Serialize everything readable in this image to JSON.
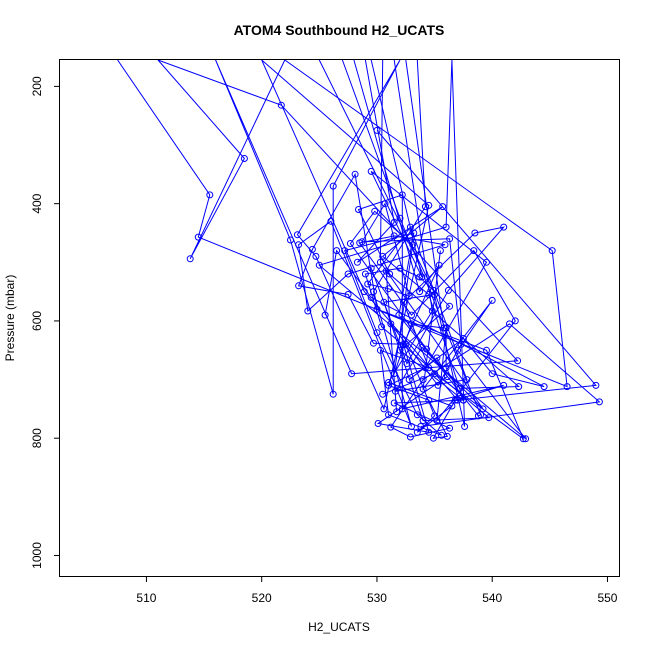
{
  "chart_data": {
    "type": "line",
    "title": "ATOM4 Southbound H2_UCATS",
    "xlabel": "H2_UCATS",
    "ylabel": "Pressure (mbar)",
    "xlim": [
      502.5,
      551
    ],
    "ylim": [
      1035,
      155
    ],
    "y_reversed": true,
    "x_ticks": [
      510,
      520,
      530,
      540,
      550
    ],
    "y_ticks": [
      200,
      400,
      600,
      800,
      1000
    ],
    "grid": false,
    "series_color": "#0000ff",
    "marker": "open-circle",
    "series": [
      {
        "values": [
          {
            "x": 507.5,
            "y": 155
          },
          {
            "x": 515.5,
            "y": 385
          },
          {
            "x": 514.5,
            "y": 457
          },
          {
            "x": 546.5,
            "y": 712
          },
          {
            "x": 545.2,
            "y": 480
          },
          {
            "x": 522,
            "y": 155
          },
          {
            "x": 513.8,
            "y": 494
          },
          {
            "x": 518.5,
            "y": 323
          },
          {
            "x": 511,
            "y": 155
          },
          {
            "x": 521.7,
            "y": 232
          },
          {
            "x": 542.2,
            "y": 668
          },
          {
            "x": 527.8,
            "y": 690
          },
          {
            "x": 516,
            "y": 155
          },
          {
            "x": 522.5,
            "y": 462
          },
          {
            "x": 526.2,
            "y": 725
          },
          {
            "x": 526.2,
            "y": 370
          },
          {
            "x": 532,
            "y": 155
          },
          {
            "x": 523.1,
            "y": 453
          },
          {
            "x": 524.7,
            "y": 490
          },
          {
            "x": 530.6,
            "y": 750
          },
          {
            "x": 534.5,
            "y": 403
          },
          {
            "x": 520,
            "y": 155
          },
          {
            "x": 528.9,
            "y": 550
          },
          {
            "x": 537,
            "y": 735
          },
          {
            "x": 549,
            "y": 710
          },
          {
            "x": 530,
            "y": 275
          }
        ]
      },
      {
        "values": [
          {
            "x": 533.5,
            "y": 155
          },
          {
            "x": 534.2,
            "y": 405
          },
          {
            "x": 529.7,
            "y": 550
          },
          {
            "x": 533.0,
            "y": 780
          },
          {
            "x": 526.0,
            "y": 430
          },
          {
            "x": 523.2,
            "y": 470
          },
          {
            "x": 524.0,
            "y": 583
          },
          {
            "x": 527.5,
            "y": 520
          },
          {
            "x": 535.9,
            "y": 470
          },
          {
            "x": 531.5,
            "y": 455
          },
          {
            "x": 528.5,
            "y": 467
          },
          {
            "x": 533.0,
            "y": 590
          },
          {
            "x": 538.4,
            "y": 480
          },
          {
            "x": 542.0,
            "y": 600
          },
          {
            "x": 535.2,
            "y": 770
          },
          {
            "x": 536.0,
            "y": 612
          },
          {
            "x": 536.0,
            "y": 680
          },
          {
            "x": 537.5,
            "y": 735
          },
          {
            "x": 531.5,
            "y": 740
          },
          {
            "x": 536.3,
            "y": 783
          },
          {
            "x": 532.9,
            "y": 798
          },
          {
            "x": 531.2,
            "y": 781
          },
          {
            "x": 534.0,
            "y": 700
          },
          {
            "x": 541.5,
            "y": 605
          },
          {
            "x": 549.3,
            "y": 738
          },
          {
            "x": 533.8,
            "y": 780
          }
        ]
      },
      {
        "values": [
          {
            "x": 529.5,
            "y": 155
          },
          {
            "x": 533.9,
            "y": 525
          },
          {
            "x": 529.5,
            "y": 345
          },
          {
            "x": 539.5,
            "y": 500
          },
          {
            "x": 534.2,
            "y": 680
          },
          {
            "x": 531.0,
            "y": 710
          },
          {
            "x": 534.5,
            "y": 735
          },
          {
            "x": 536.1,
            "y": 797
          },
          {
            "x": 534.9,
            "y": 800
          },
          {
            "x": 536.8,
            "y": 735
          },
          {
            "x": 541.0,
            "y": 710
          },
          {
            "x": 532.2,
            "y": 750
          },
          {
            "x": 532.2,
            "y": 385
          },
          {
            "x": 528.4,
            "y": 410
          },
          {
            "x": 531.1,
            "y": 520
          }
        ]
      },
      {
        "values": [
          {
            "x": 525,
            "y": 155
          },
          {
            "x": 534.9,
            "y": 548
          },
          {
            "x": 537.6,
            "y": 780
          },
          {
            "x": 536.5,
            "y": 155
          },
          {
            "x": 536.0,
            "y": 440
          },
          {
            "x": 525.0,
            "y": 505
          },
          {
            "x": 542.9,
            "y": 801
          },
          {
            "x": 537.0,
            "y": 650
          },
          {
            "x": 540.0,
            "y": 565
          },
          {
            "x": 534.0,
            "y": 716
          },
          {
            "x": 535.5,
            "y": 480
          }
        ]
      },
      {
        "values": [
          {
            "x": 527.0,
            "y": 155
          },
          {
            "x": 532.0,
            "y": 425
          },
          {
            "x": 539.0,
            "y": 760
          },
          {
            "x": 538.8,
            "y": 762
          },
          {
            "x": 531.9,
            "y": 590
          },
          {
            "x": 533.2,
            "y": 450
          },
          {
            "x": 527.2,
            "y": 480
          },
          {
            "x": 530.0,
            "y": 620
          },
          {
            "x": 533.5,
            "y": 760
          },
          {
            "x": 535.6,
            "y": 795
          },
          {
            "x": 531.0,
            "y": 760
          },
          {
            "x": 530.3,
            "y": 650
          },
          {
            "x": 534.5,
            "y": 680
          },
          {
            "x": 532.3,
            "y": 568
          },
          {
            "x": 538.5,
            "y": 450
          },
          {
            "x": 541.0,
            "y": 440
          },
          {
            "x": 536.2,
            "y": 548
          },
          {
            "x": 532.6,
            "y": 673
          },
          {
            "x": 529.5,
            "y": 510
          }
        ]
      },
      {
        "values": [
          {
            "x": 531.5,
            "y": 155
          },
          {
            "x": 534.8,
            "y": 583
          },
          {
            "x": 531.0,
            "y": 705
          },
          {
            "x": 536.5,
            "y": 745
          },
          {
            "x": 533.5,
            "y": 790
          },
          {
            "x": 535.0,
            "y": 762
          },
          {
            "x": 532.5,
            "y": 640
          },
          {
            "x": 529.7,
            "y": 638
          },
          {
            "x": 527.5,
            "y": 555
          },
          {
            "x": 523.2,
            "y": 540
          },
          {
            "x": 524.4,
            "y": 478
          },
          {
            "x": 528.1,
            "y": 350
          },
          {
            "x": 530.0,
            "y": 580
          },
          {
            "x": 539.5,
            "y": 650
          },
          {
            "x": 542.7,
            "y": 801
          },
          {
            "x": 535.0,
            "y": 690
          },
          {
            "x": 530.5,
            "y": 725
          }
        ]
      },
      {
        "values": [
          {
            "x": 529.0,
            "y": 155
          },
          {
            "x": 531.5,
            "y": 432
          },
          {
            "x": 528.3,
            "y": 500
          },
          {
            "x": 535.7,
            "y": 405
          },
          {
            "x": 530.5,
            "y": 490
          },
          {
            "x": 534.5,
            "y": 555
          },
          {
            "x": 537.5,
            "y": 735
          },
          {
            "x": 532.0,
            "y": 650
          },
          {
            "x": 536.3,
            "y": 575
          },
          {
            "x": 533.7,
            "y": 525
          },
          {
            "x": 532.0,
            "y": 510
          },
          {
            "x": 529.0,
            "y": 520
          },
          {
            "x": 530.4,
            "y": 610
          },
          {
            "x": 539.7,
            "y": 765
          },
          {
            "x": 534.0,
            "y": 770
          },
          {
            "x": 530.6,
            "y": 568
          },
          {
            "x": 535.0,
            "y": 555
          }
        ]
      },
      {
        "values": [
          {
            "x": 530.5,
            "y": 155
          },
          {
            "x": 530.3,
            "y": 500
          },
          {
            "x": 539.2,
            "y": 750
          },
          {
            "x": 533.9,
            "y": 645
          },
          {
            "x": 531.6,
            "y": 720
          },
          {
            "x": 537.8,
            "y": 700
          },
          {
            "x": 532.9,
            "y": 440
          },
          {
            "x": 529.2,
            "y": 537
          },
          {
            "x": 531.0,
            "y": 545
          },
          {
            "x": 532.8,
            "y": 558
          },
          {
            "x": 530.7,
            "y": 400
          },
          {
            "x": 528.7,
            "y": 465
          },
          {
            "x": 536.3,
            "y": 460
          },
          {
            "x": 537.3,
            "y": 640
          },
          {
            "x": 535.3,
            "y": 710
          },
          {
            "x": 531.2,
            "y": 605
          }
        ]
      },
      {
        "values": [
          {
            "x": 528.0,
            "y": 155
          },
          {
            "x": 533.7,
            "y": 550
          },
          {
            "x": 535.4,
            "y": 505
          },
          {
            "x": 532.3,
            "y": 640
          },
          {
            "x": 534.5,
            "y": 790
          },
          {
            "x": 530.1,
            "y": 775
          },
          {
            "x": 536.1,
            "y": 695
          },
          {
            "x": 535.2,
            "y": 663
          },
          {
            "x": 532.8,
            "y": 700
          },
          {
            "x": 537.5,
            "y": 630
          },
          {
            "x": 540.0,
            "y": 690
          },
          {
            "x": 544.5,
            "y": 712
          },
          {
            "x": 529.5,
            "y": 560
          },
          {
            "x": 526.5,
            "y": 480
          },
          {
            "x": 525.5,
            "y": 590
          }
        ]
      },
      {
        "values": [
          {
            "x": 532.5,
            "y": 155
          },
          {
            "x": 535.8,
            "y": 612
          },
          {
            "x": 533.0,
            "y": 605
          },
          {
            "x": 531.5,
            "y": 690
          },
          {
            "x": 533.1,
            "y": 470
          },
          {
            "x": 529.8,
            "y": 413
          },
          {
            "x": 527.7,
            "y": 468
          },
          {
            "x": 534.3,
            "y": 648
          },
          {
            "x": 537.2,
            "y": 715
          },
          {
            "x": 542.3,
            "y": 712
          },
          {
            "x": 530.8,
            "y": 515
          },
          {
            "x": 531.7,
            "y": 755
          }
        ]
      }
    ]
  }
}
